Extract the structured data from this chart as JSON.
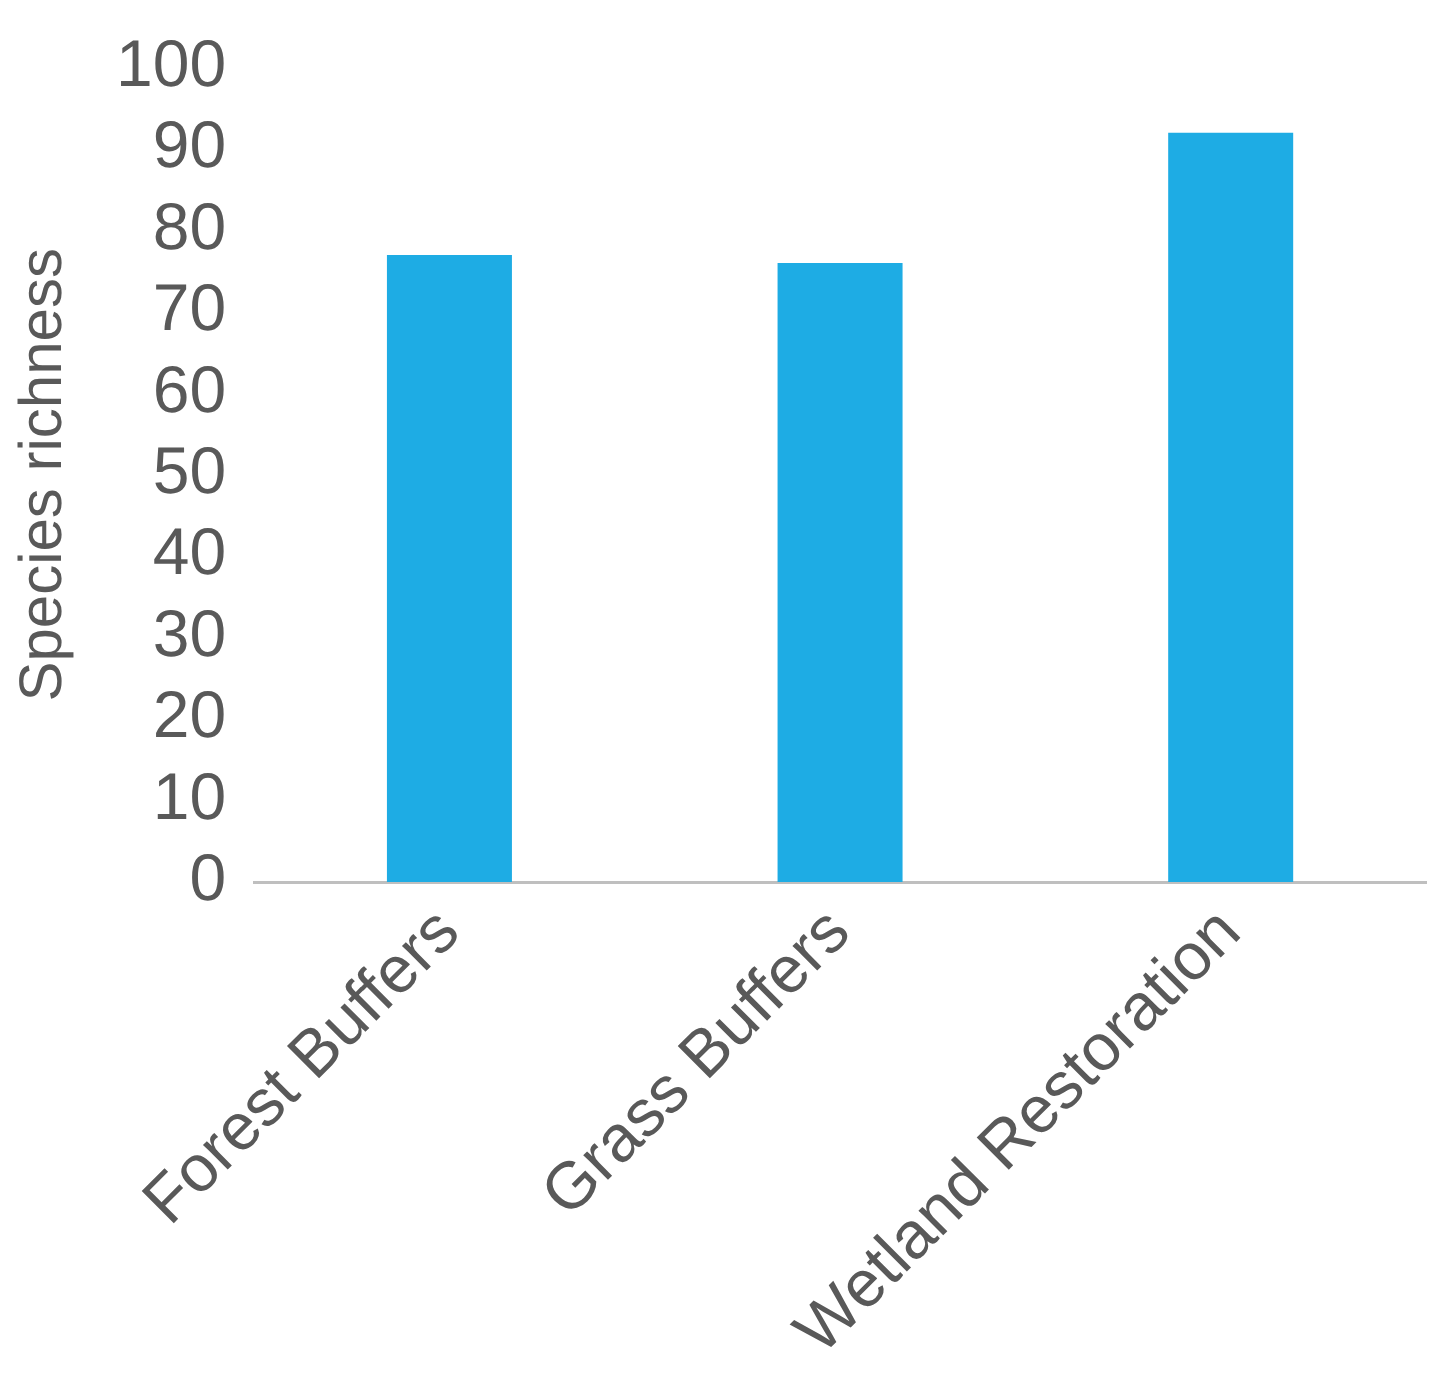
{
  "chart_data": {
    "type": "bar",
    "ylabel": "Species richness",
    "categories": [
      "Forest Buffers",
      "Grass Buffers",
      "Wetland Restoration"
    ],
    "values": [
      77,
      76,
      92
    ],
    "color": "#1eace4",
    "ylim": [
      0,
      100
    ],
    "yticks": [
      0,
      10,
      20,
      30,
      40,
      50,
      60,
      70,
      80,
      90,
      100
    ],
    "grid": false
  }
}
